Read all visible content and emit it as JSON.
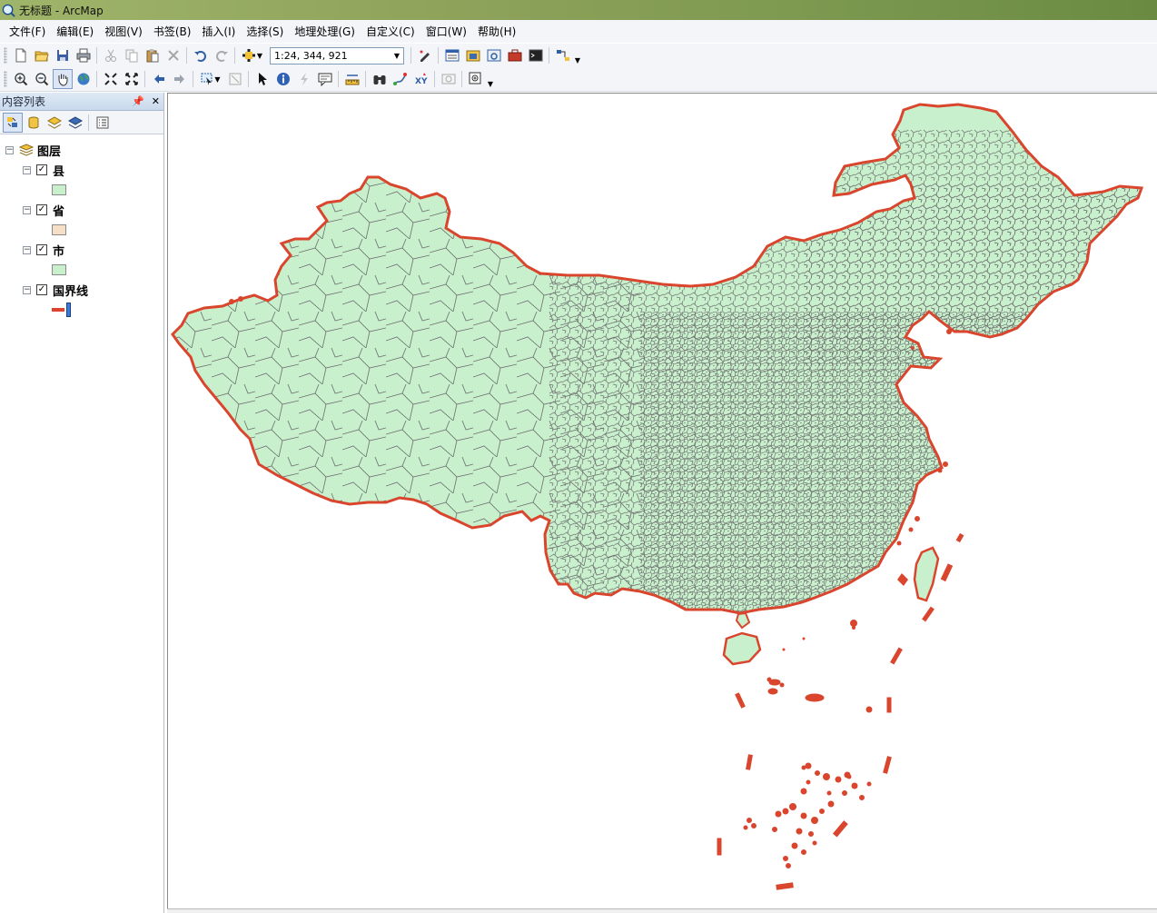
{
  "window": {
    "title": "无标题 - ArcMap"
  },
  "menu": [
    "文件(F)",
    "编辑(E)",
    "视图(V)",
    "书签(B)",
    "插入(I)",
    "选择(S)",
    "地理处理(G)",
    "自定义(C)",
    "窗口(W)",
    "帮助(H)"
  ],
  "toolbar": {
    "scale_value": "1:24, 344, 921"
  },
  "toc": {
    "title": "内容列表",
    "root_label": "图层",
    "layers": [
      {
        "label": "县",
        "checked": true,
        "swatch": "#c8f0cd"
      },
      {
        "label": "省",
        "checked": true,
        "swatch": "#f5dfc6"
      },
      {
        "label": "市",
        "checked": true,
        "swatch": "#c8f0cd"
      },
      {
        "label": "国界线",
        "checked": true,
        "swatch": "#e0432c"
      }
    ]
  },
  "map": {
    "fill": "#c8f0cd",
    "county_lines": "#6e6e6e",
    "border": "#d9452d"
  }
}
